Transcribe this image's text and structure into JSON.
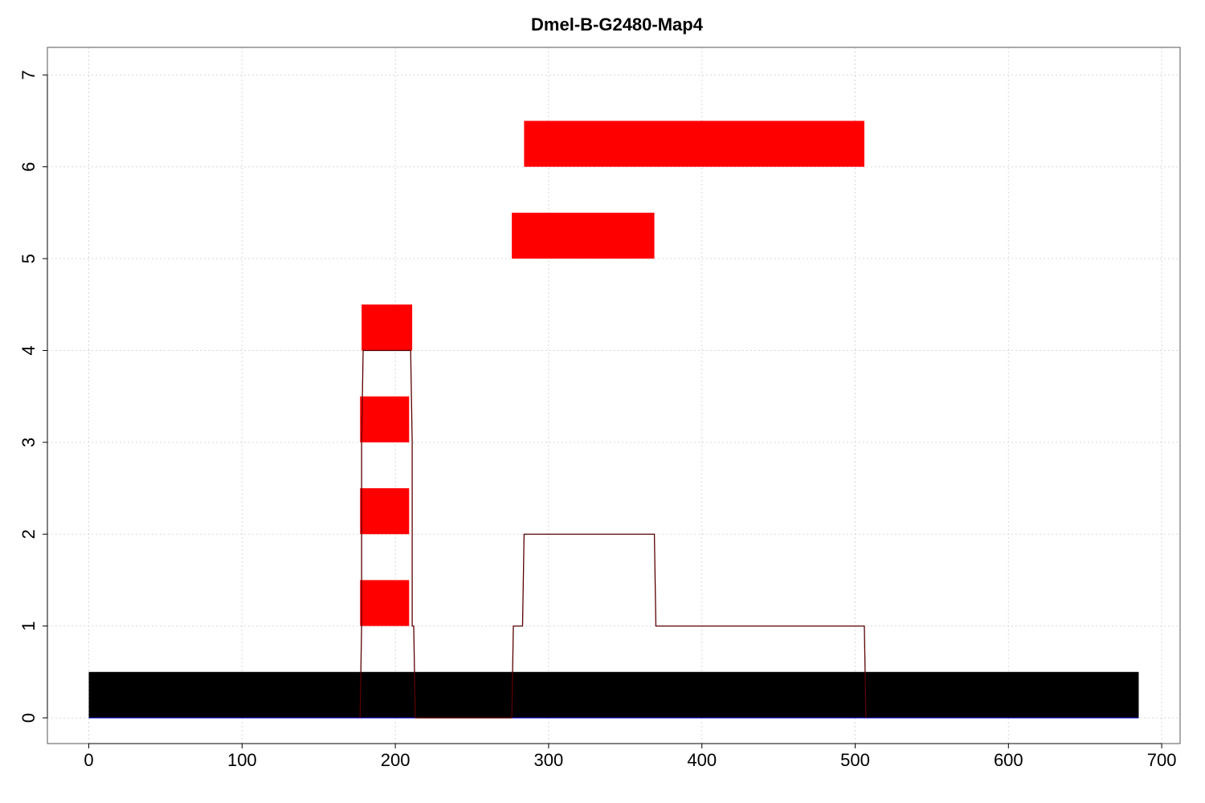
{
  "chart_data": {
    "type": "bar",
    "title": "Dmel-B-G2480-Map4",
    "xlabel": "",
    "ylabel": "",
    "xlim": [
      -27,
      712
    ],
    "ylim": [
      -0.28,
      7.3
    ],
    "x_ticks": [
      0,
      100,
      200,
      300,
      400,
      500,
      600,
      700
    ],
    "y_ticks": [
      0,
      1,
      2,
      3,
      4,
      5,
      6,
      7
    ],
    "grid": true,
    "reference_bar": {
      "x_start": 0,
      "x_end": 685,
      "y_start": 0,
      "y_end": 0.5,
      "color": "#000000"
    },
    "segments": [
      {
        "x_start": 177,
        "x_end": 209,
        "y_start": 1,
        "y_end": 1.5,
        "color": "#ff0000"
      },
      {
        "x_start": 177,
        "x_end": 209,
        "y_start": 2,
        "y_end": 2.5,
        "color": "#ff0000"
      },
      {
        "x_start": 177,
        "x_end": 209,
        "y_start": 3,
        "y_end": 3.5,
        "color": "#ff0000"
      },
      {
        "x_start": 178,
        "x_end": 211,
        "y_start": 4,
        "y_end": 4.5,
        "color": "#ff0000"
      },
      {
        "x_start": 276,
        "x_end": 369,
        "y_start": 5,
        "y_end": 5.5,
        "color": "#ff0000"
      },
      {
        "x_start": 284,
        "x_end": 506,
        "y_start": 6,
        "y_end": 6.5,
        "color": "#ff0000"
      }
    ],
    "coverage_line": {
      "color": "#5a0000",
      "points": [
        [
          177,
          0
        ],
        [
          178,
          1
        ],
        [
          178,
          3
        ],
        [
          179,
          4
        ],
        [
          210,
          4
        ],
        [
          211,
          3
        ],
        [
          211,
          1
        ],
        [
          212,
          1
        ],
        [
          213,
          0
        ],
        [
          276,
          0
        ],
        [
          277,
          1
        ],
        [
          283,
          1
        ],
        [
          284,
          2
        ],
        [
          369,
          2
        ],
        [
          370,
          1
        ],
        [
          506,
          1
        ],
        [
          507,
          0
        ]
      ]
    },
    "baseline_line": {
      "color": "#0000cc",
      "x_start": 0,
      "x_end": 685,
      "y": 0
    }
  }
}
